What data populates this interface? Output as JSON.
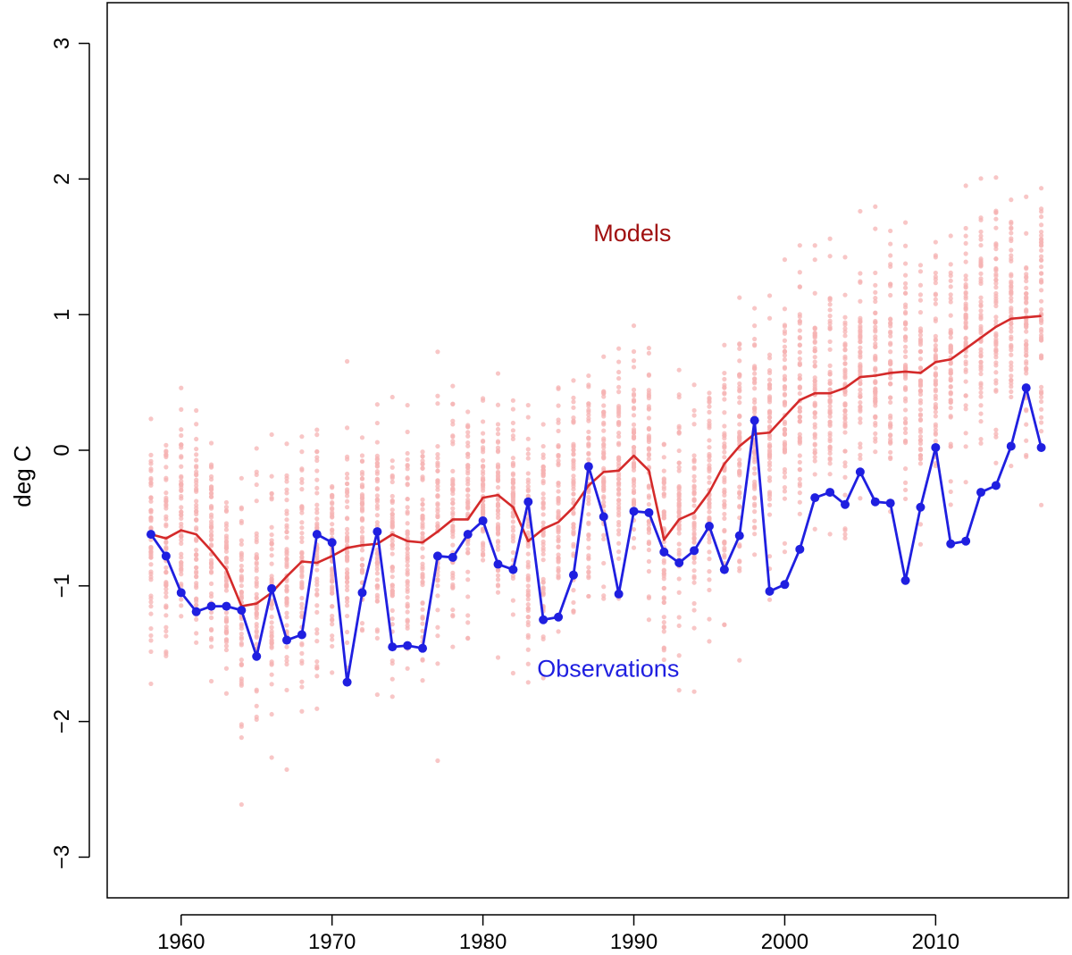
{
  "chart_data": {
    "type": "line",
    "title": "",
    "xlabel": "",
    "ylabel": "deg C",
    "xlim": [
      1955.1,
      2018.8
    ],
    "ylim": [
      -3.3,
      3.3
    ],
    "grid": false,
    "x_ticks": [
      {
        "value": 1960,
        "label": "1960"
      },
      {
        "value": 1970,
        "label": "1970"
      },
      {
        "value": 1980,
        "label": "1980"
      },
      {
        "value": 1990,
        "label": "1990"
      },
      {
        "value": 2000,
        "label": "2000"
      },
      {
        "value": 2010,
        "label": "2010"
      }
    ],
    "y_ticks": [
      {
        "value": 3,
        "label": "3"
      },
      {
        "value": 2,
        "label": "2"
      },
      {
        "value": 1,
        "label": "1"
      },
      {
        "value": 0,
        "label": "0"
      },
      {
        "value": -1,
        "label": "−1"
      },
      {
        "value": -2,
        "label": "−2"
      },
      {
        "value": -3,
        "label": "−3"
      }
    ],
    "x": [
      1958,
      1959,
      1960,
      1961,
      1962,
      1963,
      1964,
      1965,
      1966,
      1967,
      1968,
      1969,
      1970,
      1971,
      1972,
      1973,
      1974,
      1975,
      1976,
      1977,
      1978,
      1979,
      1980,
      1981,
      1982,
      1983,
      1984,
      1985,
      1986,
      1987,
      1988,
      1989,
      1990,
      1991,
      1992,
      1993,
      1994,
      1995,
      1996,
      1997,
      1998,
      1999,
      2000,
      2001,
      2002,
      2003,
      2004,
      2005,
      2006,
      2007,
      2008,
      2009,
      2010,
      2011,
      2012,
      2013,
      2014,
      2015,
      2016,
      2017
    ],
    "series": [
      {
        "name": "Models",
        "color": "#d42a2a",
        "values": [
          -0.62,
          -0.65,
          -0.59,
          -0.62,
          -0.74,
          -0.88,
          -1.15,
          -1.13,
          -1.05,
          -0.93,
          -0.82,
          -0.83,
          -0.78,
          -0.72,
          -0.7,
          -0.69,
          -0.62,
          -0.67,
          -0.68,
          -0.6,
          -0.51,
          -0.51,
          -0.35,
          -0.33,
          -0.42,
          -0.67,
          -0.58,
          -0.53,
          -0.42,
          -0.26,
          -0.16,
          -0.15,
          -0.04,
          -0.15,
          -0.66,
          -0.51,
          -0.46,
          -0.31,
          -0.1,
          0.03,
          0.12,
          0.13,
          0.25,
          0.37,
          0.42,
          0.42,
          0.46,
          0.54,
          0.55,
          0.57,
          0.58,
          0.57,
          0.65,
          0.67,
          0.75,
          0.83,
          0.91,
          0.97,
          0.98,
          0.99
        ]
      },
      {
        "name": "Observations",
        "color": "#1f1fe0",
        "values": [
          -0.62,
          -0.78,
          -1.05,
          -1.19,
          -1.15,
          -1.15,
          -1.18,
          -1.52,
          -1.02,
          -1.4,
          -1.36,
          -0.62,
          -0.68,
          -1.71,
          -1.05,
          -0.6,
          -1.45,
          -1.44,
          -1.46,
          -0.78,
          -0.79,
          -0.62,
          -0.52,
          -0.84,
          -0.88,
          -0.38,
          -1.25,
          -1.23,
          -0.92,
          -0.12,
          -0.49,
          -1.06,
          -0.45,
          -0.46,
          -0.75,
          -0.83,
          -0.74,
          -0.56,
          -0.88,
          -0.63,
          0.22,
          -1.04,
          -0.99,
          -0.73,
          -0.35,
          -0.31,
          -0.4,
          -0.16,
          -0.38,
          -0.39,
          -0.96,
          -0.42,
          0.02,
          -0.69,
          -0.67,
          -0.31,
          -0.26,
          0.03,
          0.46,
          0.02
        ]
      }
    ],
    "annotations": [
      {
        "text": "Models",
        "color": "#a01010",
        "at": [
          1989.9,
          1.54
        ]
      },
      {
        "text": "Observations",
        "color": "#1f1fe0",
        "at": [
          1988.3,
          -1.67
        ]
      }
    ],
    "model_ensemble_point_color": "#f5b3b3",
    "observation_point_color": "#1f1fe0"
  }
}
